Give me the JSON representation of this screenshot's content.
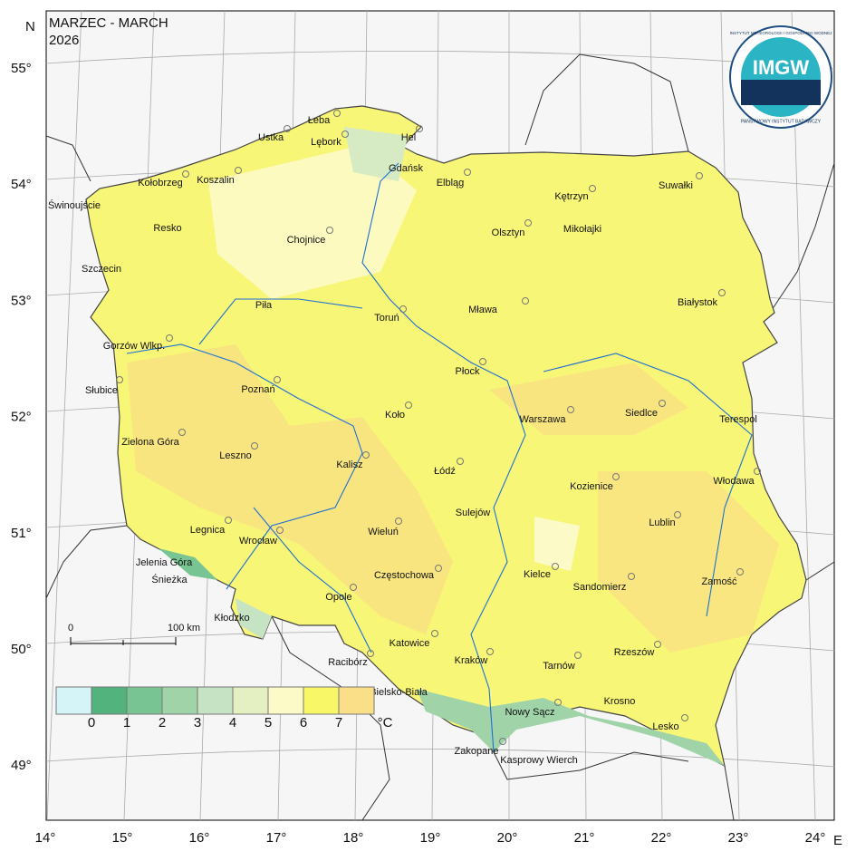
{
  "header": {
    "title": "MARZEC - MARCH",
    "year": "2026"
  },
  "axes": {
    "north": "N",
    "east": "E",
    "latitudes": [
      "55°",
      "54°",
      "53°",
      "52°",
      "51°",
      "50°",
      "49°"
    ],
    "longitudes": [
      "14°",
      "15°",
      "16°",
      "17°",
      "18°",
      "19°",
      "20°",
      "21°",
      "22°",
      "23°",
      "24°"
    ]
  },
  "logo": {
    "name": "IMGW",
    "ring_top": "INSTYTUT METEOROLOGII I GOSPODARKI WODNEJ",
    "ring_bottom": "PAŃSTWOWY INSTYTUT BADAWCZY"
  },
  "scale": {
    "start": "0",
    "end": "100 km"
  },
  "legend": {
    "colors": [
      "#d4f4f7",
      "#52b37d",
      "#78c492",
      "#a0d3a8",
      "#c6e4c4",
      "#e4efc2",
      "#fcfbc8",
      "#f8f768",
      "#fbdf88"
    ],
    "labels": [
      "0",
      "1",
      "2",
      "3",
      "4",
      "5",
      "6",
      "7"
    ],
    "unit": "°C"
  },
  "cities": [
    "Łeba",
    "Ustka",
    "Lębork",
    "Hel",
    "Gdańsk",
    "Kołobrzeg",
    "Koszalin",
    "Elbląg",
    "Kętrzyn",
    "Suwałki",
    "Świnoujście",
    "Resko",
    "Chojnice",
    "Olsztyn",
    "Mikołajki",
    "Szczecin",
    "Piła",
    "Toruń",
    "Mława",
    "Białystok",
    "Gorzów Wlkp.",
    "Słubice",
    "Poznań",
    "Płock",
    "Koło",
    "Siedlce",
    "Warszawa",
    "Terespol",
    "Zielona Góra",
    "Leszno",
    "Kalisz",
    "Łódź",
    "Kozienice",
    "Włodawa",
    "Sulejów",
    "Lublin",
    "Legnica",
    "Wieluń",
    "Wrocław",
    "Jelenia Góra",
    "Śnieżka",
    "Kielce",
    "Częstochowa",
    "Sandomierz",
    "Zamość",
    "Opole",
    "Kłodzko",
    "Katowice",
    "Rzeszów",
    "Racibórz",
    "Kraków",
    "Tarnów",
    "Bielsko-Biała",
    "Nowy Sącz",
    "Krosno",
    "Lesko",
    "Zakopane",
    "Kasprowy Wierch"
  ]
}
